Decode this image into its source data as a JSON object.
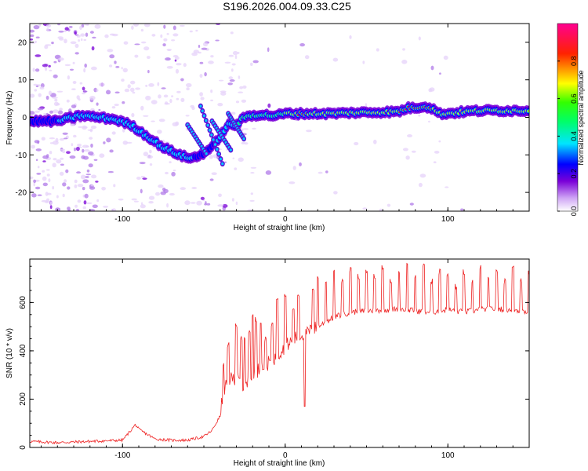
{
  "title": "S196.2026.004.09.33.C25",
  "chart_data": [
    {
      "type": "heatmap",
      "xlabel": "Height of straight line (km)",
      "ylabel": "Frequency (Hz)",
      "xlim": [
        -157,
        150
      ],
      "ylim": [
        -25,
        25
      ],
      "xticks": [
        -100,
        0,
        100
      ],
      "yticks": [
        -20,
        -10,
        0,
        10,
        20
      ],
      "colorbar": {
        "label": "Normalized spectral amplitude",
        "range": [
          0,
          1
        ],
        "ticks": [
          "0.0",
          "0.2",
          "0.4",
          "0.6",
          "0.8"
        ],
        "colormap": [
          "#ffffff",
          "#7a00d8",
          "#0000ff",
          "#00e5ff",
          "#00ff00",
          "#ffff00",
          "#ff0000",
          "#ff0090"
        ]
      },
      "ridge_x": [
        -157,
        -140,
        -125,
        -115,
        -105,
        -95,
        -85,
        -75,
        -65,
        -58,
        -52,
        -45,
        -40,
        -35,
        -30,
        -25,
        -20,
        -15,
        -10,
        -5,
        0,
        10,
        20,
        30,
        40,
        50,
        60,
        70,
        75,
        80,
        85,
        90,
        95,
        100,
        110,
        120,
        130,
        140,
        150
      ],
      "ridge_y": [
        -1,
        -1,
        0.5,
        0,
        -0.5,
        -2,
        -5,
        -8,
        -10,
        -11,
        -10,
        -8,
        -5,
        -2,
        -2,
        0,
        0.5,
        0.8,
        0.5,
        0.5,
        1,
        1,
        1,
        1,
        1.2,
        1.3,
        1.4,
        1.5,
        2.5,
        2.5,
        3,
        2.5,
        1,
        1,
        1.5,
        1.8,
        1.8,
        1.8,
        1.8
      ],
      "ridge_amplitude": [
        0.3,
        0.35,
        0.5,
        0.5,
        0.45,
        0.5,
        0.5,
        0.5,
        0.45,
        0.4,
        0.2,
        0.3,
        0.4,
        0.5,
        0.5,
        0.55,
        0.6,
        0.6,
        0.65,
        0.7,
        0.7,
        0.9,
        0.75,
        0.7,
        0.75,
        0.8,
        0.85,
        0.85,
        0.9,
        0.9,
        0.9,
        0.85,
        0.8,
        0.8,
        0.85,
        0.85,
        0.85,
        0.85,
        0.85
      ]
    },
    {
      "type": "line",
      "xlabel": "Height of straight line (km)",
      "ylabel": "SNR (10 * v/v)",
      "xlim": [
        -157,
        150
      ],
      "ylim": [
        0,
        780
      ],
      "xticks": [
        -100,
        0,
        100
      ],
      "yticks": [
        0,
        200,
        400,
        600
      ],
      "series": [
        {
          "name": "SNR",
          "color": "#ee2222",
          "x": [
            -157,
            -140,
            -120,
            -100,
            -95,
            -92,
            -90,
            -80,
            -70,
            -60,
            -50,
            -45,
            -40,
            -38,
            -35,
            -30,
            -25,
            -20,
            -15,
            -10,
            -5,
            0,
            5,
            10,
            15,
            20,
            30,
            40,
            50,
            60,
            70,
            80,
            90,
            100,
            110,
            120,
            130,
            140,
            150
          ],
          "y": [
            25,
            20,
            25,
            30,
            70,
            95,
            75,
            35,
            30,
            30,
            45,
            70,
            130,
            230,
            280,
            290,
            240,
            300,
            330,
            350,
            380,
            420,
            445,
            470,
            480,
            500,
            540,
            560,
            565,
            570,
            575,
            565,
            560,
            570,
            560,
            570,
            575,
            570,
            560
          ]
        }
      ],
      "spikes": [
        {
          "x": -38,
          "y": 360
        },
        {
          "x": -35,
          "y": 440
        },
        {
          "x": -30,
          "y": 515
        },
        {
          "x": -27,
          "y": 470
        },
        {
          "x": -25,
          "y": 460
        },
        {
          "x": -22,
          "y": 485
        },
        {
          "x": -20,
          "y": 560
        },
        {
          "x": -18,
          "y": 540
        },
        {
          "x": -15,
          "y": 520
        },
        {
          "x": -12,
          "y": 460
        },
        {
          "x": -8,
          "y": 520
        },
        {
          "x": -5,
          "y": 620
        },
        {
          "x": 0,
          "y": 640
        },
        {
          "x": 5,
          "y": 580
        },
        {
          "x": 8,
          "y": 640
        },
        {
          "x": 12,
          "y": 600
        },
        {
          "x": 17,
          "y": 660
        },
        {
          "x": 20,
          "y": 720
        },
        {
          "x": 25,
          "y": 690
        },
        {
          "x": 30,
          "y": 740
        },
        {
          "x": 35,
          "y": 700
        },
        {
          "x": 40,
          "y": 750
        },
        {
          "x": 45,
          "y": 720
        },
        {
          "x": 50,
          "y": 740
        },
        {
          "x": 55,
          "y": 720
        },
        {
          "x": 60,
          "y": 760
        },
        {
          "x": 65,
          "y": 700
        },
        {
          "x": 70,
          "y": 730
        },
        {
          "x": 75,
          "y": 780
        },
        {
          "x": 80,
          "y": 720
        },
        {
          "x": 85,
          "y": 770
        },
        {
          "x": 90,
          "y": 700
        },
        {
          "x": 95,
          "y": 740
        },
        {
          "x": 100,
          "y": 720
        },
        {
          "x": 105,
          "y": 680
        },
        {
          "x": 110,
          "y": 740
        },
        {
          "x": 115,
          "y": 700
        },
        {
          "x": 120,
          "y": 760
        },
        {
          "x": 125,
          "y": 720
        },
        {
          "x": 130,
          "y": 740
        },
        {
          "x": 135,
          "y": 700
        },
        {
          "x": 140,
          "y": 760
        },
        {
          "x": 145,
          "y": 700
        },
        {
          "x": 150,
          "y": 740
        }
      ],
      "dip": {
        "x": 12,
        "y": 170
      }
    }
  ]
}
